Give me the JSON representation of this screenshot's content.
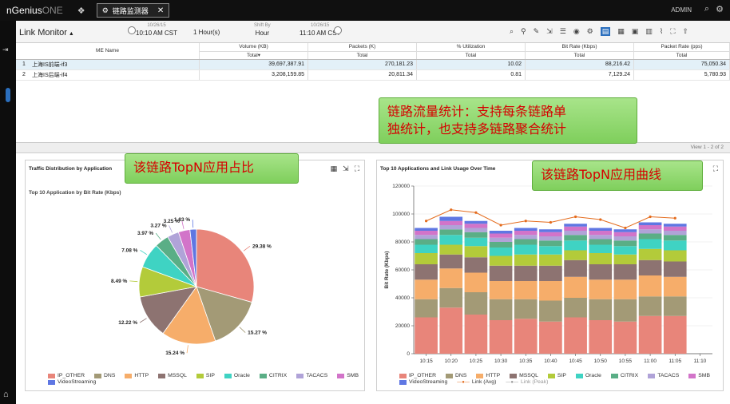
{
  "topbar": {
    "brand_main": "nGenius",
    "brand_one": "ONE",
    "tab_label": "链路监测器",
    "admin": "ADMIN"
  },
  "monitor": {
    "title": "Link Monitor",
    "time1_date": "10/26/15",
    "time1_time": "10:10 AM CST",
    "range": "1 Hour(s)",
    "shift_label": "Shift By",
    "shift_value": "Hour",
    "time2_date": "10/26/15",
    "time2_time": "11:10 AM CST"
  },
  "table": {
    "name_header": "ME Name",
    "columns": [
      {
        "header": "Volume (KB)",
        "sub": "Total"
      },
      {
        "header": "Packets (K)",
        "sub": "Total"
      },
      {
        "header": "% Utilization",
        "sub": "Total"
      },
      {
        "header": "Bit Rate (Kbps)",
        "sub": "Total"
      },
      {
        "header": "Packet Rate (pps)",
        "sub": "Total"
      }
    ],
    "rows": [
      {
        "num": "1",
        "name": "上海IS前端-if3",
        "values": [
          "39,697,387.91",
          "270,181.23",
          "10.02",
          "88,216.42",
          "75,050.34"
        ]
      },
      {
        "num": "2",
        "name": "上海IS后端-if4",
        "values": [
          "3,208,159.85",
          "20,811.34",
          "0.81",
          "7,129.24",
          "5,780.93"
        ]
      }
    ],
    "view_info": "View 1 - 2 of 2"
  },
  "callouts": {
    "top_line1": "链路流量统计：支持每条链路单",
    "top_line2": "独统计，也支持多链路聚合统计",
    "left": "该链路TopN应用占比",
    "right": "该链路TopN应用曲线"
  },
  "colors": {
    "IP_OTHER": "#e8857a",
    "DNS": "#a39a76",
    "HTTP": "#f6ad6a",
    "MSSQL": "#8d7371",
    "SIP": "#b3cb3a",
    "Oracle": "#3fd3c3",
    "CITRIX": "#5aae86",
    "TACACS": "#b0a3d8",
    "SMB": "#d274c9",
    "VideoStreaming": "#5f77e3",
    "link_avg": "#e46b1c",
    "link_peak": "#999999"
  },
  "left_panel": {
    "title": "Traffic Distribution by Application",
    "subtitle": "Top 10 Application by Bit Rate (Kbps)"
  },
  "right_panel": {
    "title": "Top 10 Applications and Link Usage Over Time"
  },
  "chart_data": [
    {
      "type": "pie",
      "title": "Top 10 Application by Bit Rate (Kbps)",
      "labels": [
        "IP_OTHER",
        "DNS",
        "HTTP",
        "MSSQL",
        "SIP",
        "Oracle",
        "CITRIX",
        "TACACS",
        "SMB",
        "VideoStreaming"
      ],
      "values": [
        29.38,
        15.27,
        15.24,
        12.22,
        8.49,
        7.08,
        3.97,
        3.27,
        3.25,
        1.83
      ],
      "value_labels": [
        "29.38 %",
        "15.27 %",
        "15.24 %",
        "12.22 %",
        "8.49 %",
        "7.08 %",
        "3.97 %",
        "3.27 %",
        "3.25 %",
        "1.83 %"
      ],
      "legend": [
        "IP_OTHER",
        "DNS",
        "HTTP",
        "MSSQL",
        "SIP",
        "Oracle",
        "CITRIX",
        "TACACS",
        "SMB",
        "VideoStreaming"
      ],
      "legend_position": "bottom"
    },
    {
      "type": "bar",
      "stacked": true,
      "ylabel": "Bit Rate (Kbps)",
      "ylim": [
        0,
        120000
      ],
      "yticks": [
        "0",
        "20000",
        "40000",
        "60000",
        "80000",
        "100000",
        "120000"
      ],
      "categories": [
        "10:15",
        "10:20",
        "10:25",
        "10:30",
        "10:35",
        "10:40",
        "10:45",
        "10:50",
        "10:55",
        "11:00",
        "11:05",
        "11:10"
      ],
      "series": [
        {
          "name": "IP_OTHER",
          "values": [
            26000,
            33000,
            28000,
            24000,
            25000,
            23000,
            26000,
            24000,
            23000,
            27000,
            27000,
            null
          ]
        },
        {
          "name": "DNS",
          "values": [
            13000,
            14000,
            16000,
            15000,
            14000,
            15000,
            14000,
            15000,
            16000,
            14000,
            14000,
            null
          ]
        },
        {
          "name": "HTTP",
          "values": [
            14000,
            14000,
            14000,
            13000,
            13000,
            14000,
            15000,
            14000,
            14000,
            15000,
            14000,
            null
          ]
        },
        {
          "name": "MSSQL",
          "values": [
            11000,
            10000,
            11000,
            11000,
            11000,
            11000,
            12000,
            11000,
            11000,
            11000,
            11000,
            null
          ]
        },
        {
          "name": "SIP",
          "values": [
            8000,
            7000,
            8000,
            7000,
            8000,
            8000,
            7000,
            8000,
            7000,
            8000,
            8000,
            null
          ]
        },
        {
          "name": "Oracle",
          "values": [
            6000,
            7000,
            6000,
            6000,
            7000,
            6000,
            7000,
            6000,
            6000,
            7000,
            7000,
            null
          ]
        },
        {
          "name": "CITRIX",
          "values": [
            4000,
            4000,
            4000,
            4000,
            4000,
            4000,
            4000,
            4000,
            4000,
            4000,
            4000,
            null
          ]
        },
        {
          "name": "TACACS",
          "values": [
            3000,
            3000,
            3000,
            3000,
            3000,
            3000,
            3000,
            3000,
            3000,
            3000,
            3000,
            null
          ]
        },
        {
          "name": "SMB",
          "values": [
            3000,
            3000,
            3000,
            3000,
            3000,
            3000,
            3000,
            3000,
            3000,
            3000,
            3000,
            null
          ]
        },
        {
          "name": "VideoStreaming",
          "values": [
            2000,
            3000,
            2000,
            2000,
            2000,
            2000,
            2000,
            2000,
            2000,
            2000,
            2000,
            null
          ]
        }
      ],
      "lines": [
        {
          "name": "Link (Avg)",
          "values": [
            95000,
            103000,
            101000,
            92000,
            95000,
            94000,
            98000,
            96000,
            90000,
            98000,
            97000,
            null
          ]
        },
        {
          "name": "Link (Peak)",
          "values": []
        }
      ],
      "legend_position": "bottom"
    }
  ]
}
